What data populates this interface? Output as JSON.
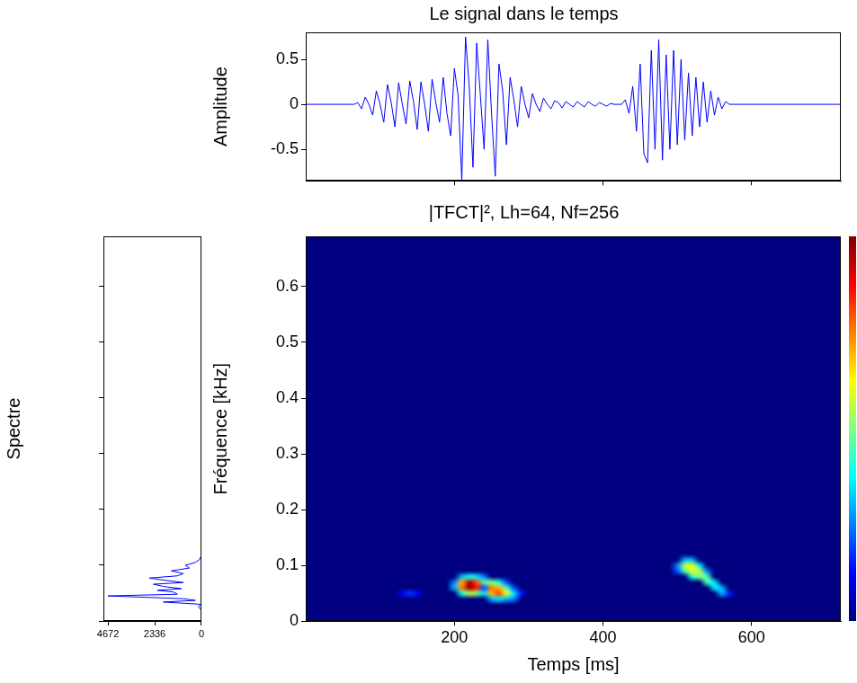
{
  "chart_data": [
    {
      "type": "line",
      "title": "Le signal dans le temps",
      "ylabel": "Amplitude",
      "x": [
        0,
        65,
        70,
        75,
        80,
        85,
        90,
        95,
        100,
        105,
        110,
        115,
        120,
        125,
        130,
        135,
        140,
        145,
        150,
        155,
        160,
        165,
        170,
        175,
        180,
        185,
        190,
        195,
        200,
        205,
        210,
        215,
        220,
        225,
        230,
        235,
        240,
        245,
        250,
        255,
        260,
        265,
        270,
        275,
        280,
        285,
        290,
        295,
        300,
        305,
        310,
        315,
        320,
        325,
        330,
        335,
        340,
        345,
        350,
        355,
        360,
        365,
        370,
        375,
        380,
        385,
        390,
        395,
        400,
        405,
        410,
        415,
        420,
        425,
        430,
        435,
        440,
        445,
        450,
        455,
        460,
        465,
        470,
        475,
        480,
        485,
        490,
        495,
        500,
        505,
        510,
        515,
        520,
        525,
        530,
        535,
        540,
        545,
        550,
        555,
        560,
        565,
        570,
        720
      ],
      "values": [
        0,
        0,
        0.02,
        -0.05,
        0.08,
        0,
        -0.12,
        0.15,
        0,
        -0.2,
        0.22,
        0.02,
        -0.25,
        0.24,
        0,
        -0.22,
        0.26,
        0.03,
        -0.28,
        0.25,
        0,
        -0.3,
        0.28,
        0.02,
        -0.2,
        0.3,
        -0.1,
        -0.35,
        0.4,
        0.1,
        -0.85,
        0.75,
        0.2,
        -0.7,
        0.68,
        0.1,
        -0.5,
        0.72,
        -0.1,
        -0.8,
        0.45,
        0.15,
        -0.45,
        0.3,
        0.05,
        -0.25,
        0.2,
        0,
        -0.15,
        0.12,
        0,
        -0.08,
        0.07,
        0,
        -0.05,
        0.04,
        0.02,
        -0.04,
        0.03,
        0,
        -0.03,
        0.03,
        0,
        -0.03,
        0.03,
        0,
        -0.02,
        0.02,
        0,
        -0.02,
        0.01,
        0,
        0,
        0,
        0.05,
        -0.1,
        0.2,
        -0.3,
        0.45,
        -0.55,
        -0.65,
        0.6,
        -0.5,
        0.72,
        -0.62,
        0.55,
        -0.5,
        0.6,
        -0.45,
        0.5,
        -0.4,
        0.35,
        -0.35,
        0.3,
        -0.25,
        0.25,
        -0.2,
        0.15,
        -0.12,
        0.08,
        -0.05,
        0.03,
        0,
        0
      ],
      "color": "#0000ff",
      "xlim": [
        0,
        720
      ],
      "xticks": [
        200,
        400,
        600
      ],
      "ylim": [
        -0.85,
        0.8
      ],
      "yticks": [
        -0.5,
        0,
        0.5
      ],
      "grid": false,
      "tick_labels": "y"
    },
    {
      "type": "line",
      "orientation": "horizontal",
      "ylabel": "Spectre",
      "y": [
        0,
        0.02,
        0.025,
        0.03,
        0.034,
        0.037,
        0.04,
        0.045,
        0.048,
        0.052,
        0.055,
        0.058,
        0.062,
        0.066,
        0.069,
        0.073,
        0.077,
        0.081,
        0.085,
        0.09,
        0.095,
        0.1,
        0.105,
        0.11,
        0.115,
        0.12,
        0.69
      ],
      "values": [
        0,
        0,
        150,
        50,
        1900,
        300,
        900,
        4672,
        1200,
        1400,
        2200,
        1000,
        1900,
        2400,
        900,
        1800,
        2600,
        1200,
        900,
        1500,
        600,
        800,
        300,
        100,
        30,
        0,
        0
      ],
      "color": "#0000ff",
      "xlim": [
        4900,
        0
      ],
      "xticks": [
        4672,
        2336,
        0
      ],
      "ylim": [
        0,
        0.69
      ],
      "yticks": [
        0,
        0.1,
        0.2,
        0.3,
        0.4,
        0.5,
        0.6
      ],
      "grid": false,
      "tick_labels": "x"
    },
    {
      "type": "heatmap",
      "title": "|TFCT|², Lh=64, Nf=256",
      "xlabel": "Temps [ms]",
      "ylabel": "Fréquence [kHz]",
      "xlim": [
        0,
        720
      ],
      "xticks": [
        200,
        400,
        600
      ],
      "ylim": [
        0,
        0.69
      ],
      "yticks": [
        0,
        0.1,
        0.2,
        0.3,
        0.4,
        0.5,
        0.6
      ],
      "grid": false,
      "color": "jet",
      "colorbar": {
        "range": [
          0,
          1
        ]
      },
      "cells": [
        [
          130,
          0.05,
          0.12
        ],
        [
          140,
          0.05,
          0.18
        ],
        [
          150,
          0.05,
          0.12
        ],
        [
          200,
          0.06,
          0.3
        ],
        [
          200,
          0.07,
          0.25
        ],
        [
          210,
          0.05,
          0.4
        ],
        [
          210,
          0.06,
          0.75
        ],
        [
          210,
          0.07,
          0.7
        ],
        [
          210,
          0.08,
          0.3
        ],
        [
          220,
          0.05,
          0.55
        ],
        [
          220,
          0.06,
          1.0
        ],
        [
          220,
          0.07,
          0.95
        ],
        [
          220,
          0.08,
          0.4
        ],
        [
          230,
          0.05,
          0.5
        ],
        [
          230,
          0.06,
          0.85
        ],
        [
          230,
          0.07,
          0.8
        ],
        [
          230,
          0.08,
          0.35
        ],
        [
          240,
          0.05,
          0.35
        ],
        [
          240,
          0.06,
          0.2
        ],
        [
          240,
          0.07,
          0.45
        ],
        [
          240,
          0.08,
          0.25
        ],
        [
          250,
          0.04,
          0.3
        ],
        [
          250,
          0.05,
          0.7
        ],
        [
          250,
          0.06,
          0.75
        ],
        [
          250,
          0.07,
          0.5
        ],
        [
          260,
          0.04,
          0.35
        ],
        [
          260,
          0.05,
          0.8
        ],
        [
          260,
          0.06,
          0.7
        ],
        [
          260,
          0.07,
          0.4
        ],
        [
          270,
          0.04,
          0.3
        ],
        [
          270,
          0.05,
          0.6
        ],
        [
          270,
          0.06,
          0.45
        ],
        [
          270,
          0.07,
          0.2
        ],
        [
          280,
          0.04,
          0.25
        ],
        [
          280,
          0.05,
          0.35
        ],
        [
          280,
          0.06,
          0.2
        ],
        [
          290,
          0.05,
          0.15
        ],
        [
          500,
          0.09,
          0.2
        ],
        [
          500,
          0.1,
          0.25
        ],
        [
          510,
          0.09,
          0.45
        ],
        [
          510,
          0.1,
          0.55
        ],
        [
          510,
          0.11,
          0.3
        ],
        [
          520,
          0.08,
          0.4
        ],
        [
          520,
          0.09,
          0.6
        ],
        [
          520,
          0.1,
          0.6
        ],
        [
          520,
          0.11,
          0.3
        ],
        [
          530,
          0.08,
          0.5
        ],
        [
          530,
          0.09,
          0.55
        ],
        [
          530,
          0.1,
          0.35
        ],
        [
          540,
          0.07,
          0.45
        ],
        [
          540,
          0.08,
          0.45
        ],
        [
          540,
          0.09,
          0.25
        ],
        [
          550,
          0.06,
          0.35
        ],
        [
          550,
          0.07,
          0.35
        ],
        [
          560,
          0.05,
          0.3
        ],
        [
          560,
          0.06,
          0.3
        ],
        [
          570,
          0.05,
          0.15
        ]
      ]
    }
  ]
}
